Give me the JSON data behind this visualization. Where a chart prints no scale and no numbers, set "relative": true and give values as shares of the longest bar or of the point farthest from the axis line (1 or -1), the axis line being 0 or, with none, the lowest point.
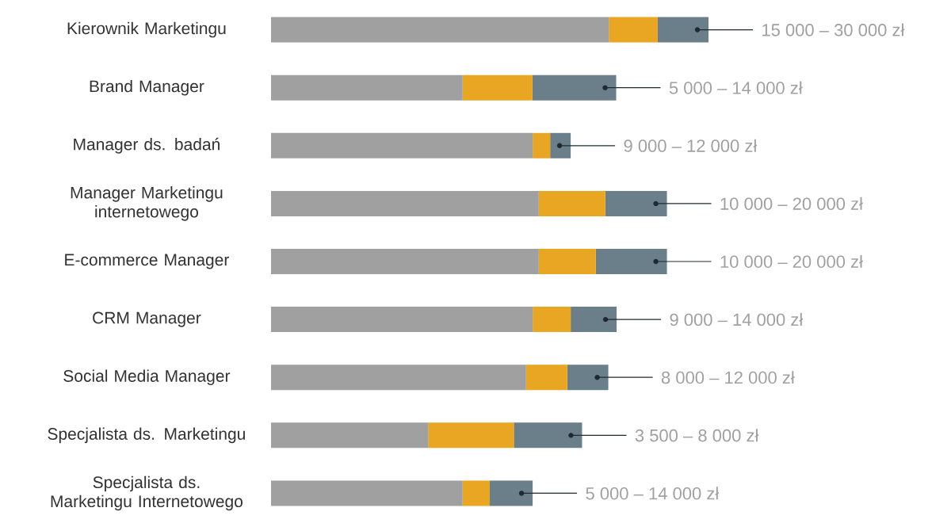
{
  "chart_data": {
    "type": "bar",
    "orientation": "horizontal",
    "stacked": true,
    "relative": true,
    "categories": [
      "Kierownik Marketingu",
      "Brand Manager",
      "Manager ds. badań",
      "Manager Marketingu internetowego",
      "E-commerce Manager",
      "CRM Manager",
      "Social Media Manager",
      "Specjalista ds. Marketingu",
      "Specjalista ds. Marketingu Internetowego"
    ],
    "series": [
      {
        "color": "#a0a0a0",
        "values": [
          0.772,
          0.438,
          0.598,
          0.612,
          0.612,
          0.598,
          0.583,
          0.359,
          0.438
        ]
      },
      {
        "color": "#e8a623",
        "values": [
          0.112,
          0.159,
          0.04,
          0.152,
          0.13,
          0.087,
          0.094,
          0.196,
          0.062
        ]
      },
      {
        "color": "#6b7f8a",
        "values": [
          0.116,
          0.192,
          0.047,
          0.141,
          0.163,
          0.105,
          0.094,
          0.156,
          0.098
        ]
      }
    ],
    "annotations": [
      "15 000 – 30 000 zł",
      "5 000 – 14 000 zł",
      "9 000 – 12 000 zł",
      "10 000 – 20 000 zł",
      "10 000 – 20 000 zł",
      "9 000 – 14 000 zł",
      "8 000 – 12 000 zł",
      "3 500 – 8 000 zł",
      "5 000 – 14 000 zł"
    ]
  }
}
